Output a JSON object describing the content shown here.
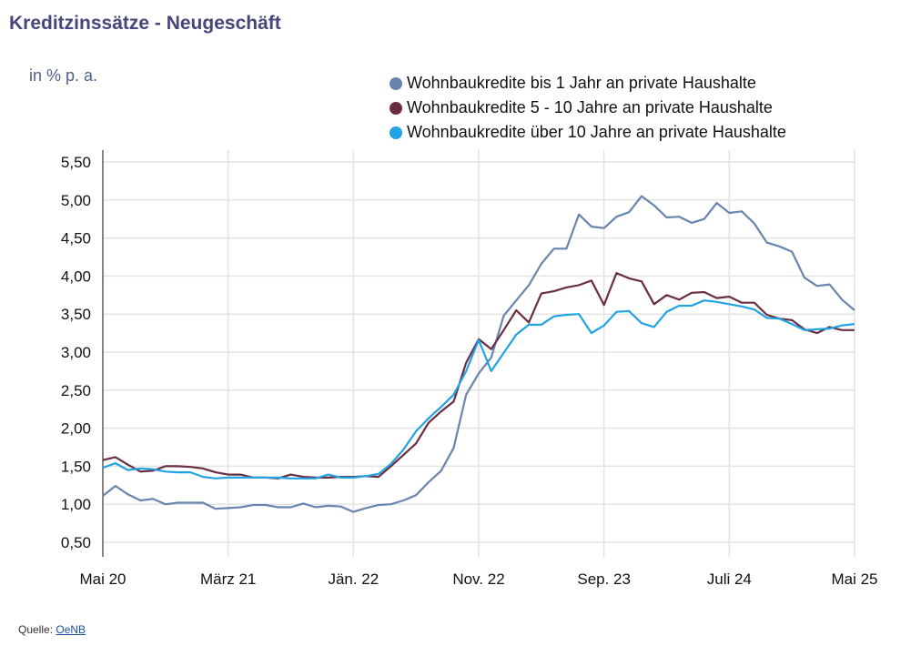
{
  "title": "Kreditzinssätze - Neugeschäft",
  "unit": "in % p. a.",
  "source": {
    "label": "Quelle:",
    "link": "OeNB"
  },
  "chart_data": {
    "type": "line",
    "title": "Kreditzinssätze - Neugeschäft",
    "ylabel": "in % p. a.",
    "ylim": [
      0.5,
      5.5
    ],
    "yticks": [
      "0,50",
      "1,00",
      "1,50",
      "2,00",
      "2,50",
      "3,00",
      "3,50",
      "4,00",
      "4,50",
      "5,00",
      "5,50"
    ],
    "x_start": "Mai 20",
    "x_end": "Mai 25",
    "x_frequency": "monthly",
    "xtick_labels": [
      "Mai 20",
      "März 21",
      "Jän. 22",
      "Nov. 22",
      "Sep. 23",
      "Juli 24",
      "Mai 25"
    ],
    "grid": true,
    "legend_position": "top-right",
    "series": [
      {
        "name": "Wohnbaukredite bis 1 Jahr an private Haushalte",
        "color": "#6a84b0",
        "values": [
          1.11,
          1.24,
          1.13,
          1.05,
          1.07,
          1.0,
          1.02,
          1.02,
          1.02,
          0.94,
          0.95,
          0.96,
          0.99,
          0.99,
          0.96,
          0.96,
          1.01,
          0.96,
          0.98,
          0.97,
          0.9,
          0.95,
          0.99,
          1.0,
          1.05,
          1.12,
          1.29,
          1.44,
          1.74,
          2.44,
          2.72,
          2.93,
          3.48,
          3.68,
          3.88,
          4.16,
          4.36,
          4.36,
          4.81,
          4.65,
          4.63,
          4.78,
          4.84,
          5.05,
          4.93,
          4.77,
          4.78,
          4.7,
          4.75,
          4.96,
          4.83,
          4.85,
          4.69,
          4.44,
          4.39,
          4.32,
          3.98,
          3.87,
          3.89,
          3.69,
          3.55
        ]
      },
      {
        "name": "Wohnbaukredite 5 - 10 Jahre an private Haushalte",
        "color": "#6b2d42",
        "values": [
          1.58,
          1.62,
          1.52,
          1.43,
          1.44,
          1.5,
          1.5,
          1.49,
          1.47,
          1.42,
          1.39,
          1.39,
          1.35,
          1.35,
          1.34,
          1.39,
          1.36,
          1.35,
          1.35,
          1.36,
          1.36,
          1.37,
          1.36,
          1.5,
          1.65,
          1.8,
          2.07,
          2.22,
          2.35,
          2.86,
          3.17,
          3.04,
          3.29,
          3.55,
          3.39,
          3.77,
          3.8,
          3.85,
          3.88,
          3.94,
          3.62,
          4.04,
          3.97,
          3.93,
          3.63,
          3.75,
          3.69,
          3.78,
          3.79,
          3.71,
          3.73,
          3.65,
          3.65,
          3.49,
          3.44,
          3.42,
          3.3,
          3.25,
          3.33,
          3.29,
          3.29
        ]
      },
      {
        "name": "Wohnbaukredite über 10 Jahre an private Haushalte",
        "color": "#23a3e3",
        "values": [
          1.48,
          1.54,
          1.45,
          1.47,
          1.46,
          1.43,
          1.42,
          1.42,
          1.36,
          1.34,
          1.35,
          1.35,
          1.35,
          1.35,
          1.35,
          1.34,
          1.34,
          1.34,
          1.39,
          1.35,
          1.35,
          1.37,
          1.4,
          1.53,
          1.72,
          1.96,
          2.13,
          2.28,
          2.44,
          2.75,
          3.16,
          2.75,
          2.99,
          3.23,
          3.36,
          3.36,
          3.47,
          3.49,
          3.5,
          3.25,
          3.35,
          3.53,
          3.54,
          3.38,
          3.33,
          3.53,
          3.61,
          3.61,
          3.68,
          3.66,
          3.63,
          3.6,
          3.56,
          3.45,
          3.44,
          3.37,
          3.29,
          3.3,
          3.31,
          3.35,
          3.37
        ]
      }
    ]
  }
}
